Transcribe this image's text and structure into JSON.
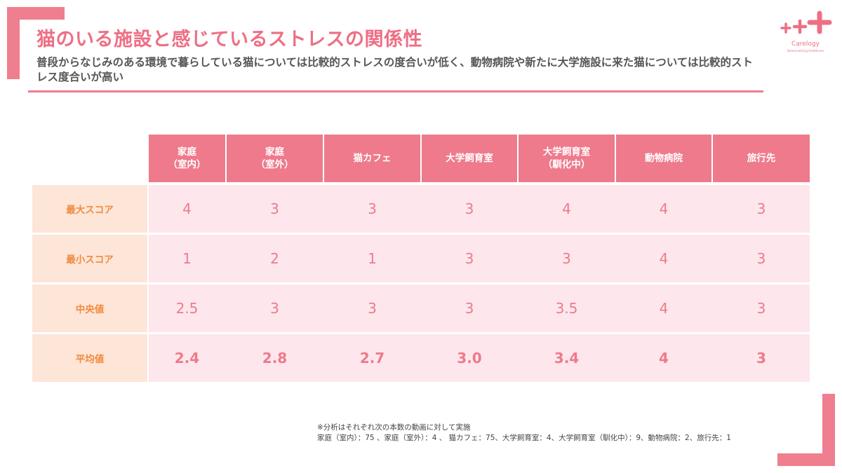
{
  "title": "猫のいる施設と感じているストレスの関係性",
  "subtitle": "普段からなじみのある環境で暮らしている猫については比較的ストレスの度合いが低く、動物病院や新たに大学施設に来た猫については比較的ストレス度合いが高い",
  "logo": {
    "name": "Carelogy",
    "tagline": "Democratizing Healthcare"
  },
  "colors": {
    "accent": "#ee6f84",
    "header_bg": "#ee7a8c",
    "row_bg": "#fde7ec",
    "rowhdr_bg": "#fde5d8",
    "rowhdr_text": "#f08a3e"
  },
  "table": {
    "columns": [
      "家庭\n（室内）",
      "家庭\n（室外）",
      "猫カフェ",
      "大学飼育室",
      "大学飼育室\n（馴化中）",
      "動物病院",
      "旅行先"
    ],
    "rows": [
      {
        "label": "最大スコア",
        "values": [
          "4",
          "3",
          "3",
          "3",
          "4",
          "4",
          "3"
        ]
      },
      {
        "label": "最小スコア",
        "values": [
          "1",
          "2",
          "1",
          "3",
          "3",
          "4",
          "3"
        ]
      },
      {
        "label": "中央値",
        "values": [
          "2.5",
          "3",
          "3",
          "3",
          "3.5",
          "4",
          "3"
        ]
      },
      {
        "label": "平均値",
        "values": [
          "2.4",
          "2.8",
          "2.7",
          "3.0",
          "3.4",
          "4",
          "3"
        ]
      }
    ]
  },
  "note": {
    "line1": "※分析はそれぞれ次の本数の動画に対して実施",
    "line2": "家庭（室内）：75 、家庭（室外）：4 、 猫カフェ：75、大学飼育室：4、大学飼育室（馴化中）：9、動物病院：2、旅行先：1"
  }
}
